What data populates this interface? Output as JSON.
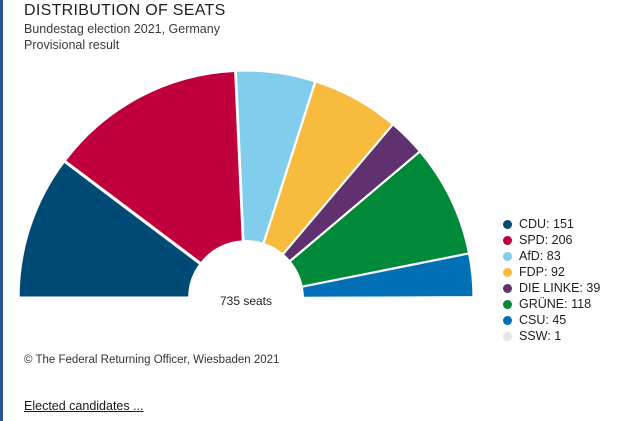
{
  "header": {
    "title": "DISTRIBUTION OF SEATS",
    "subtitle_line1": "Bundestag election 2021, Germany",
    "subtitle_line2": "Provisional result"
  },
  "chart_data": {
    "type": "pie",
    "shape": "semicircle-donut",
    "title": "DISTRIBUTION OF SEATS",
    "total_label": "735 seats",
    "total": 735,
    "legend_position": "right",
    "series": [
      {
        "name": "CDU",
        "label": "CDU: 151",
        "value": 151,
        "color": "#004b76"
      },
      {
        "name": "SPD",
        "label": "SPD: 206",
        "value": 206,
        "color": "#c0003c"
      },
      {
        "name": "AfD",
        "label": "AfD: 83",
        "value": 83,
        "color": "#80cdec"
      },
      {
        "name": "FDP",
        "label": "FDP: 92",
        "value": 92,
        "color": "#f7bb3d"
      },
      {
        "name": "DIE LINKE",
        "label": "DIE LINKE: 39",
        "value": 39,
        "color": "#5f316e"
      },
      {
        "name": "GRÜNE",
        "label": "GRÜNE: 118",
        "value": 118,
        "color": "#008939"
      },
      {
        "name": "CSU",
        "label": "CSU: 45",
        "value": 45,
        "color": "#0070b6"
      },
      {
        "name": "SSW",
        "label": "SSW: 1",
        "value": 1,
        "color": "#e6e6e6"
      }
    ]
  },
  "footer": {
    "copyright": "© The Federal Returning Officer, Wiesbaden 2021",
    "link_label": "Elected candidates ..."
  }
}
